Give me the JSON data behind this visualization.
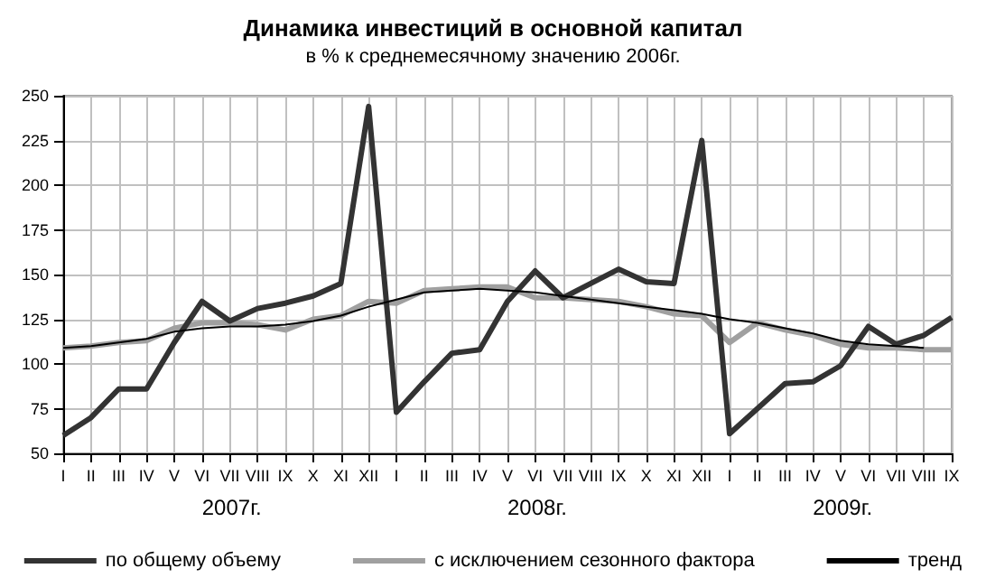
{
  "chart_data": {
    "type": "line",
    "title": "Динамика инвестиций в основной капитал",
    "subtitle": "в % к среднемесячному значению 2006г.",
    "categories": [
      "I",
      "II",
      "III",
      "IV",
      "V",
      "VI",
      "VII",
      "VIII",
      "IX",
      "X",
      "XI",
      "XII",
      "I",
      "II",
      "III",
      "IV",
      "V",
      "VI",
      "VII",
      "VIII",
      "IX",
      "X",
      "XI",
      "XII",
      "I",
      "II",
      "III",
      "IV",
      "V",
      "VI",
      "VII",
      "VIII",
      "IX"
    ],
    "annotations": [
      "2007г.",
      "2008г.",
      "2009г."
    ],
    "series": [
      {
        "name": "по общему объему",
        "color": "#333333",
        "values": [
          60,
          70,
          86,
          86,
          112,
          135,
          124,
          131,
          134,
          138,
          145,
          244,
          73,
          90,
          106,
          108,
          135,
          152,
          137,
          145,
          153,
          146,
          145,
          225,
          61,
          75,
          89,
          90,
          99,
          121,
          111,
          116,
          126
        ]
      },
      {
        "name": "с исключением сезонного фактора",
        "color": "#a0a0a0",
        "values": [
          109,
          110,
          112,
          113,
          120,
          123,
          123,
          122,
          119,
          125,
          127,
          135,
          134,
          141,
          142,
          143,
          143,
          137,
          137,
          136,
          135,
          132,
          128,
          127,
          112,
          123,
          119,
          116,
          111,
          109,
          109,
          108,
          108
        ]
      },
      {
        "name": "тренд",
        "color": "#000000",
        "values": [
          109,
          110,
          112,
          114,
          118,
          120,
          121,
          121,
          122,
          124,
          127,
          132,
          136,
          140,
          141,
          142,
          141,
          140,
          138,
          136,
          134,
          132,
          130,
          128,
          125,
          123,
          120,
          117,
          113,
          111,
          110,
          109,
          null
        ]
      }
    ],
    "ylim": [
      50,
      250
    ],
    "yticks": [
      50,
      75,
      100,
      125,
      150,
      175,
      200,
      225,
      250
    ],
    "grid": true,
    "legend": "bottom",
    "marker": "none",
    "line_style": "solid"
  }
}
